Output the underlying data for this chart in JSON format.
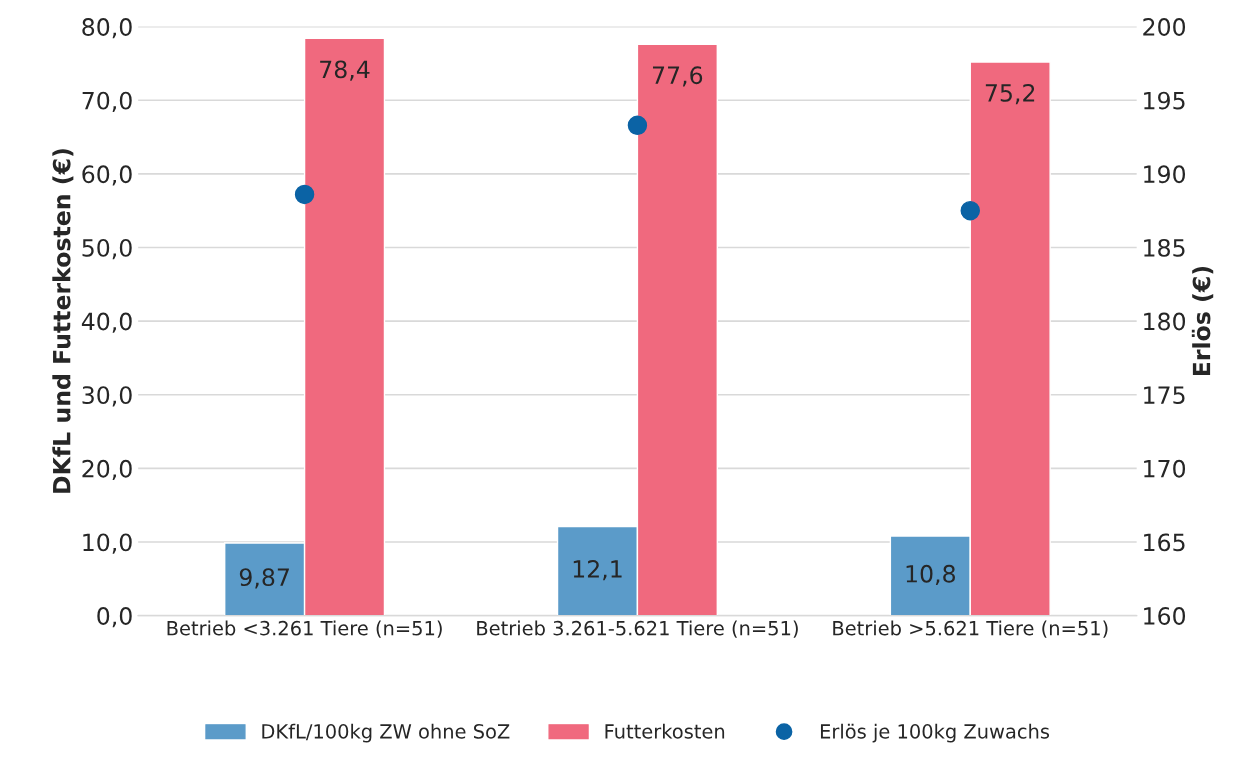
{
  "chart_data": {
    "type": "bar",
    "categories": [
      "Betrieb <3.261 Tiere (n=51)",
      "Betrieb 3.261-5.621 Tiere (n=51)",
      "Betrieb >5.621 Tiere (n=51)"
    ],
    "series": [
      {
        "name": "DKfL/100kg ZW ohne SoZ",
        "color": "#5b9bc9",
        "values": [
          9.87,
          12.1,
          10.8
        ],
        "value_labels": [
          "9,87",
          "12,1",
          "10,8"
        ]
      },
      {
        "name": "Futterkosten",
        "color": "#f0697e",
        "values": [
          78.4,
          77.6,
          75.2
        ],
        "value_labels": [
          "78,4",
          "77,6",
          "75,2"
        ]
      },
      {
        "name": "Erlös je 100kg Zuwachs",
        "type": "scatter",
        "axis": "y2",
        "color": "#0b63a5",
        "marker": "circle",
        "values": [
          188.6,
          193.3,
          187.5
        ]
      }
    ],
    "ylabel": "DKfL und Futterkosten (€)",
    "y2label": "Erlös (€)",
    "ylim": [
      0,
      80
    ],
    "yticks": [
      {
        "value": 0,
        "label": "0,0"
      },
      {
        "value": 10,
        "label": "10,0"
      },
      {
        "value": 20,
        "label": "20,0"
      },
      {
        "value": 30,
        "label": "30,0"
      },
      {
        "value": 40,
        "label": "40,0"
      },
      {
        "value": 50,
        "label": "50,0"
      },
      {
        "value": 60,
        "label": "60,0"
      },
      {
        "value": 70,
        "label": "70,0"
      },
      {
        "value": 80,
        "label": "80,0"
      }
    ],
    "y2lim": [
      160,
      200
    ],
    "y2ticks": [
      160,
      165,
      170,
      175,
      180,
      185,
      190,
      195,
      200
    ],
    "grid": "y",
    "legend": "bottom"
  }
}
